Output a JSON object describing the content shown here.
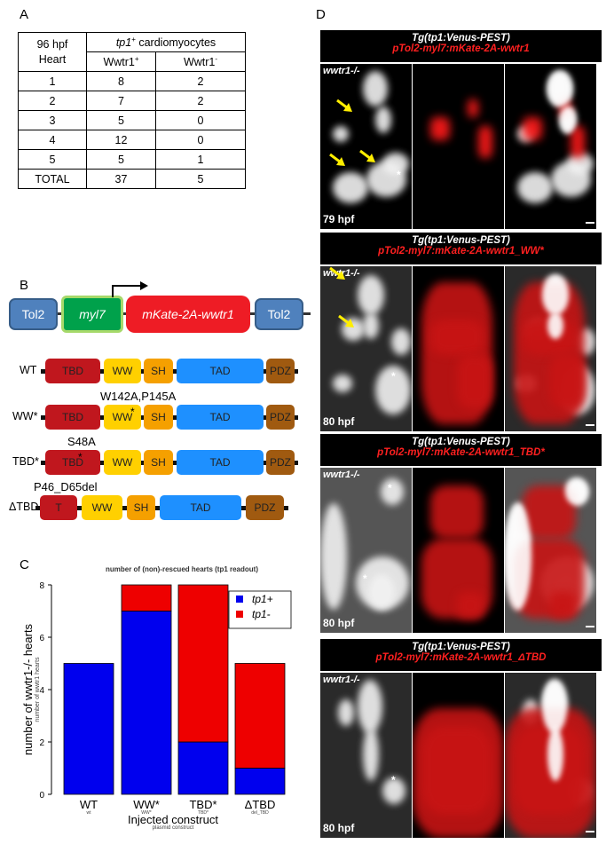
{
  "panels": {
    "a": "A",
    "b": "B",
    "c": "C",
    "d": "D"
  },
  "table": {
    "col0_line1": "96 hpf",
    "col0_line2": "Heart",
    "group_header_sup": "+",
    "group_header_prefix": "tp1",
    "group_header_suffix": " cardiomyocytes",
    "col1_header": "Wwtr1",
    "col1_sup": "+",
    "col2_header": "Wwtr1",
    "col2_sup": "-",
    "rows": [
      {
        "heart": "1",
        "pos": "8",
        "neg": "2"
      },
      {
        "heart": "2",
        "pos": "7",
        "neg": "2"
      },
      {
        "heart": "3",
        "pos": "5",
        "neg": "0"
      },
      {
        "heart": "4",
        "pos": "12",
        "neg": "0"
      },
      {
        "heart": "5",
        "pos": "5",
        "neg": "1"
      },
      {
        "heart": "TOTAL",
        "pos": "37",
        "neg": "5"
      }
    ]
  },
  "construct": {
    "tol2_left": "Tol2",
    "myl7": "myl7",
    "mkate": "mKate-2A-wwtr1",
    "tol2_right": "Tol2"
  },
  "domains": {
    "rows": [
      {
        "label": "WT",
        "tbd": "TBD",
        "ww": "WW",
        "sh": "SH",
        "tad": "TAD",
        "pdz": "PDZ"
      },
      {
        "label": "WW*",
        "tbd": "TBD",
        "ww": "WW",
        "sh": "SH",
        "tad": "TAD",
        "pdz": "PDZ",
        "mutation": "W142A,P145A",
        "star": "*"
      },
      {
        "label": "TBD*",
        "tbd": "TBD",
        "ww": "WW",
        "sh": "SH",
        "tad": "TAD",
        "pdz": "PDZ",
        "mutation": "S48A",
        "star": "*"
      },
      {
        "label": "ΔTBD",
        "tbd": "T",
        "ww": "WW",
        "sh": "SH",
        "tad": "TAD",
        "pdz": "PDZ",
        "mutation": "P46_D65del"
      }
    ]
  },
  "chart_data": {
    "type": "bar",
    "stacked": true,
    "title": "number of (non)-rescued hearts (tp1 readout)",
    "ylabel": "number of wwtr1-/- hearts",
    "ylabel_overlay": "number of wwtr1 hearts",
    "xlabel": "Injected construct",
    "xlabel_overlay": "plasmid construct",
    "categories": [
      "WT",
      "WW*",
      "TBD*",
      "ΔTBD"
    ],
    "category_small_labels": [
      "wt",
      "WW*",
      "TBD*",
      "del_TBD"
    ],
    "series": [
      {
        "name": "tp1+",
        "color": "#0000ee",
        "values": [
          5,
          7,
          2,
          1
        ]
      },
      {
        "name": "tp1-",
        "color": "#ee0000",
        "values": [
          0,
          1,
          6,
          4
        ]
      }
    ],
    "ylim": [
      0,
      8
    ],
    "yticks": [
      "0",
      "2",
      "4",
      "6",
      "8"
    ],
    "legend": "top-right"
  },
  "panel_d": [
    {
      "line1": "Tg(tp1:Venus-PEST)",
      "line2": "pTol2-myl7:mKate-2A-wwtr1",
      "genotype": "wwtr1-/-",
      "age": "79 hpf",
      "arrows": 3
    },
    {
      "line1": "Tg(tp1:Venus-PEST)",
      "line2": "pTol2-myl7:mKate-2A-wwtr1_WW*",
      "genotype": "wwtr1-/-",
      "age": "80 hpf",
      "arrows": 2
    },
    {
      "line1": "Tg(tp1:Venus-PEST)",
      "line2": "pTol2-myl7:mKate-2A-wwtr1_TBD*",
      "genotype": "wwtr1-/-",
      "age": "80 hpf",
      "arrows": 0
    },
    {
      "line1": "Tg(tp1:Venus-PEST)",
      "line2": "pTol2-myl7:mKate-2A-wwtr1_ΔTBD",
      "genotype": "wwtr1-/-",
      "age": "80 hpf",
      "arrows": 0
    }
  ],
  "star_mark": "*",
  "colors": {
    "arrow": "#ffee00",
    "red_channel": "#ff1a1a",
    "white_channel": "#ffffff"
  }
}
